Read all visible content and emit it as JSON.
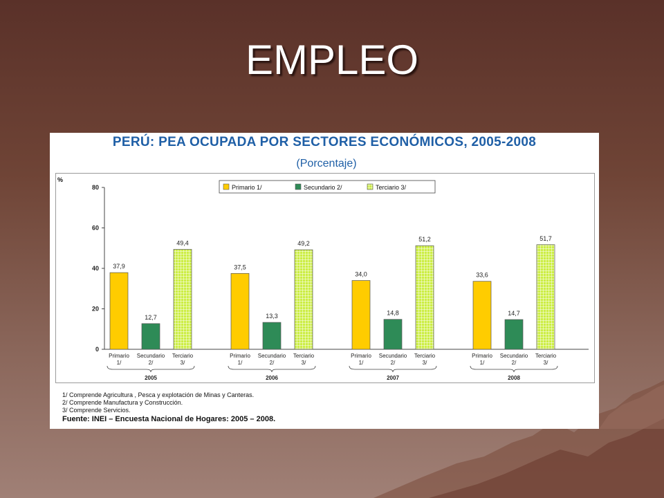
{
  "slide": {
    "title": "EMPLEO"
  },
  "chart_data": {
    "type": "bar",
    "title": "PERÚ: PEA OCUPADA POR SECTORES ECONÓMICOS, 2005-2008",
    "subtitle": "(Porcentaje)",
    "ylabel": "%",
    "ylim": [
      0,
      80
    ],
    "yticks": [
      0,
      20,
      40,
      60,
      80
    ],
    "grid": false,
    "legend_position": "top",
    "decimal_separator": ",",
    "categories": [
      "2005",
      "2006",
      "2007",
      "2008"
    ],
    "sub_labels": [
      {
        "name": "Primario",
        "note": "1/"
      },
      {
        "name": "Secundario",
        "note": "2/"
      },
      {
        "name": "Terciario",
        "note": "3/"
      }
    ],
    "series": [
      {
        "name": "Primario 1/",
        "color": "#ffcc00",
        "pattern": "solid",
        "values": [
          37.9,
          37.5,
          34.0,
          33.6
        ]
      },
      {
        "name": "Secundario 2/",
        "color": "#2e8b57",
        "pattern": "solid",
        "values": [
          12.7,
          13.3,
          14.8,
          14.7
        ]
      },
      {
        "name": "Terciario 3/",
        "color": "#ccee44",
        "pattern": "grid",
        "values": [
          49.4,
          49.2,
          51.2,
          51.7
        ]
      }
    ]
  },
  "notes": [
    "1/ Comprende Agricultura , Pesca y explotación de Minas y Canteras.",
    "2/ Comprende Manufactura y Construcción.",
    "3/ Comprende Servicios."
  ],
  "source": "Fuente: INEI – Encuesta Nacional de Hogares: 2005 – 2008."
}
